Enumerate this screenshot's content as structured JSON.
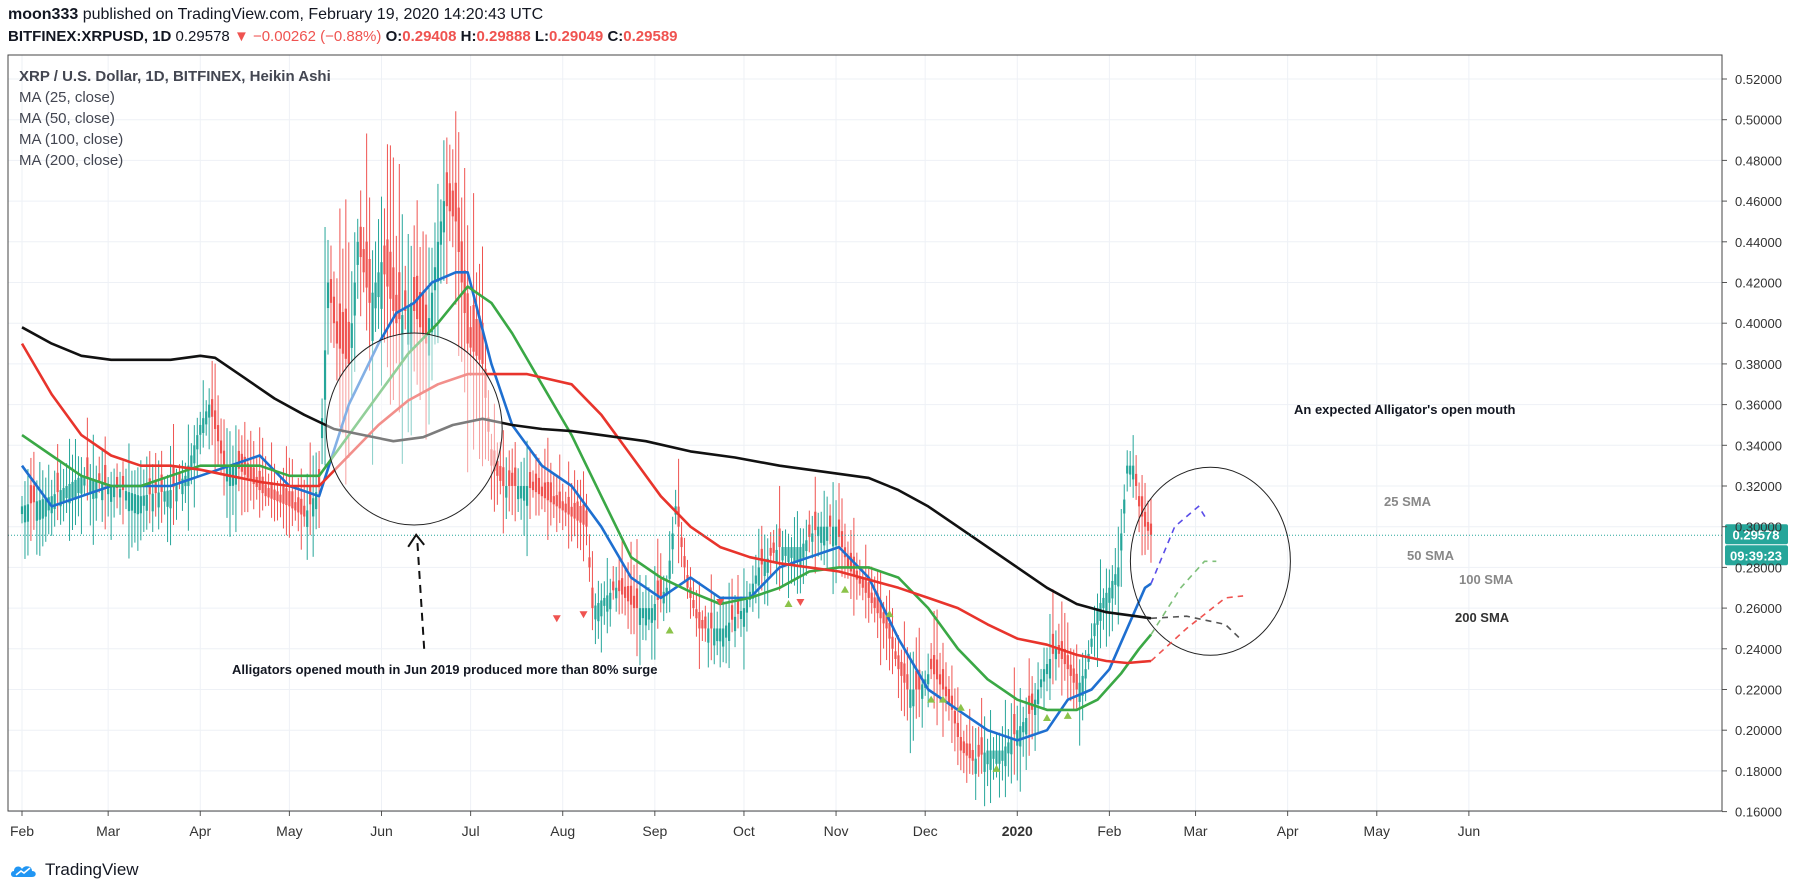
{
  "header": {
    "author": "moon333",
    "published_text": "published on TradingView.com, February 19, 2020 14:20:43 UTC",
    "symbol": "BITFINEX:XRPUSD, 1D",
    "last": "0.29578",
    "change": "▼ −0.00262 (−0.88%)",
    "o_label": "O:",
    "o_value": "0.29408",
    "h_label": "H:",
    "h_value": "0.29888",
    "l_label": "L:",
    "l_value": "0.29049",
    "c_label": "C:",
    "c_value": "0.29589"
  },
  "legend": {
    "title": "XRP / U.S. Dollar, 1D, BITFINEX, Heikin Ashi",
    "ma1": "MA (25, close)",
    "ma2": "MA (50, close)",
    "ma3": "MA (100, close)",
    "ma4": "MA (200, close)"
  },
  "branding": {
    "logo_text": "TradingView"
  },
  "colors": {
    "up": "#26a69a",
    "down": "#ef5350",
    "ma25": "#1e6fd0",
    "ma50": "#3aa845",
    "ma100": "#e8342c",
    "ma200": "#111111",
    "price_badge": "#26a69a",
    "grid": "#eef1f6"
  },
  "chart_data": {
    "type": "candlestick",
    "title": "XRP / U.S. Dollar, 1D, BITFINEX, Heikin Ashi",
    "ylim": [
      0.16,
      0.52
    ],
    "y_ticks": [
      "0.52000",
      "0.50000",
      "0.48000",
      "0.46000",
      "0.44000",
      "0.42000",
      "0.40000",
      "0.38000",
      "0.36000",
      "0.34000",
      "0.32000",
      "0.30000",
      "0.28000",
      "0.26000",
      "0.24000",
      "0.22000",
      "0.20000",
      "0.18000",
      "0.16000"
    ],
    "x_ticks": [
      "Feb",
      "Mar",
      "Apr",
      "May",
      "Jun",
      "Jul",
      "Aug",
      "Sep",
      "Oct",
      "Nov",
      "Dec",
      "2020",
      "Feb",
      "Mar",
      "Apr",
      "May",
      "Jun"
    ],
    "x_tick_days": [
      0,
      29,
      60,
      90,
      121,
      151,
      182,
      213,
      243,
      274,
      304,
      335,
      366,
      395,
      426,
      456,
      487
    ],
    "last_day": 380,
    "price_path": [
      [
        0,
        0.31
      ],
      [
        10,
        0.315
      ],
      [
        20,
        0.325
      ],
      [
        30,
        0.32
      ],
      [
        40,
        0.315
      ],
      [
        50,
        0.318
      ],
      [
        55,
        0.325
      ],
      [
        60,
        0.35
      ],
      [
        63,
        0.36
      ],
      [
        68,
        0.33
      ],
      [
        72,
        0.33
      ],
      [
        82,
        0.315
      ],
      [
        90,
        0.31
      ],
      [
        95,
        0.305
      ],
      [
        100,
        0.32
      ],
      [
        103,
        0.42
      ],
      [
        106,
        0.39
      ],
      [
        110,
        0.38
      ],
      [
        113,
        0.44
      ],
      [
        117,
        0.41
      ],
      [
        121,
        0.43
      ],
      [
        126,
        0.4
      ],
      [
        131,
        0.41
      ],
      [
        136,
        0.39
      ],
      [
        140,
        0.44
      ],
      [
        142,
        0.46
      ],
      [
        146,
        0.45
      ],
      [
        150,
        0.39
      ],
      [
        155,
        0.38
      ],
      [
        158,
        0.33
      ],
      [
        162,
        0.32
      ],
      [
        170,
        0.32
      ],
      [
        180,
        0.31
      ],
      [
        190,
        0.3
      ],
      [
        192,
        0.26
      ],
      [
        200,
        0.27
      ],
      [
        206,
        0.26
      ],
      [
        212,
        0.26
      ],
      [
        217,
        0.27
      ],
      [
        220,
        0.31
      ],
      [
        224,
        0.27
      ],
      [
        228,
        0.25
      ],
      [
        236,
        0.25
      ],
      [
        243,
        0.26
      ],
      [
        248,
        0.28
      ],
      [
        255,
        0.29
      ],
      [
        262,
        0.29
      ],
      [
        268,
        0.3
      ],
      [
        274,
        0.3
      ],
      [
        278,
        0.28
      ],
      [
        283,
        0.27
      ],
      [
        287,
        0.26
      ],
      [
        291,
        0.25
      ],
      [
        295,
        0.23
      ],
      [
        298,
        0.22
      ],
      [
        302,
        0.22
      ],
      [
        306,
        0.23
      ],
      [
        310,
        0.22
      ],
      [
        313,
        0.21
      ],
      [
        316,
        0.19
      ],
      [
        320,
        0.185
      ],
      [
        325,
        0.19
      ],
      [
        330,
        0.19
      ],
      [
        335,
        0.2
      ],
      [
        340,
        0.21
      ],
      [
        344,
        0.23
      ],
      [
        348,
        0.24
      ],
      [
        352,
        0.23
      ],
      [
        355,
        0.22
      ],
      [
        358,
        0.23
      ],
      [
        362,
        0.26
      ],
      [
        366,
        0.27
      ],
      [
        369,
        0.28
      ],
      [
        372,
        0.33
      ],
      [
        374,
        0.33
      ],
      [
        376,
        0.31
      ],
      [
        378,
        0.3
      ],
      [
        380,
        0.296
      ]
    ],
    "ma_series": [
      {
        "name": "MA 25",
        "color": "#1e6fd0",
        "points": [
          [
            0,
            0.33
          ],
          [
            10,
            0.31
          ],
          [
            20,
            0.315
          ],
          [
            30,
            0.32
          ],
          [
            40,
            0.32
          ],
          [
            50,
            0.32
          ],
          [
            60,
            0.325
          ],
          [
            70,
            0.33
          ],
          [
            80,
            0.335
          ],
          [
            90,
            0.32
          ],
          [
            100,
            0.315
          ],
          [
            110,
            0.36
          ],
          [
            120,
            0.39
          ],
          [
            126,
            0.405
          ],
          [
            132,
            0.41
          ],
          [
            138,
            0.42
          ],
          [
            146,
            0.425
          ],
          [
            150,
            0.425
          ],
          [
            158,
            0.38
          ],
          [
            165,
            0.35
          ],
          [
            175,
            0.33
          ],
          [
            185,
            0.32
          ],
          [
            195,
            0.3
          ],
          [
            205,
            0.275
          ],
          [
            215,
            0.265
          ],
          [
            225,
            0.275
          ],
          [
            235,
            0.265
          ],
          [
            245,
            0.265
          ],
          [
            255,
            0.28
          ],
          [
            265,
            0.285
          ],
          [
            275,
            0.29
          ],
          [
            285,
            0.275
          ],
          [
            295,
            0.245
          ],
          [
            305,
            0.22
          ],
          [
            315,
            0.21
          ],
          [
            325,
            0.2
          ],
          [
            335,
            0.195
          ],
          [
            345,
            0.2
          ],
          [
            352,
            0.215
          ],
          [
            360,
            0.22
          ],
          [
            366,
            0.23
          ],
          [
            372,
            0.25
          ],
          [
            378,
            0.27
          ],
          [
            380,
            0.272
          ]
        ]
      },
      {
        "name": "MA 50",
        "color": "#3aa845",
        "points": [
          [
            0,
            0.345
          ],
          [
            10,
            0.335
          ],
          [
            20,
            0.325
          ],
          [
            30,
            0.32
          ],
          [
            40,
            0.32
          ],
          [
            50,
            0.325
          ],
          [
            60,
            0.33
          ],
          [
            70,
            0.33
          ],
          [
            80,
            0.33
          ],
          [
            90,
            0.325
          ],
          [
            100,
            0.325
          ],
          [
            110,
            0.345
          ],
          [
            120,
            0.365
          ],
          [
            130,
            0.385
          ],
          [
            140,
            0.4
          ],
          [
            150,
            0.418
          ],
          [
            158,
            0.41
          ],
          [
            165,
            0.395
          ],
          [
            175,
            0.37
          ],
          [
            185,
            0.345
          ],
          [
            195,
            0.315
          ],
          [
            205,
            0.285
          ],
          [
            215,
            0.275
          ],
          [
            225,
            0.268
          ],
          [
            235,
            0.262
          ],
          [
            245,
            0.265
          ],
          [
            255,
            0.27
          ],
          [
            265,
            0.278
          ],
          [
            275,
            0.28
          ],
          [
            285,
            0.28
          ],
          [
            295,
            0.275
          ],
          [
            305,
            0.26
          ],
          [
            315,
            0.24
          ],
          [
            325,
            0.225
          ],
          [
            335,
            0.215
          ],
          [
            345,
            0.21
          ],
          [
            355,
            0.21
          ],
          [
            362,
            0.215
          ],
          [
            370,
            0.228
          ],
          [
            376,
            0.24
          ],
          [
            380,
            0.247
          ]
        ]
      },
      {
        "name": "MA 100",
        "color": "#e8342c",
        "points": [
          [
            0,
            0.39
          ],
          [
            10,
            0.365
          ],
          [
            20,
            0.345
          ],
          [
            30,
            0.335
          ],
          [
            40,
            0.33
          ],
          [
            50,
            0.33
          ],
          [
            60,
            0.328
          ],
          [
            70,
            0.325
          ],
          [
            80,
            0.322
          ],
          [
            90,
            0.32
          ],
          [
            100,
            0.32
          ],
          [
            110,
            0.335
          ],
          [
            120,
            0.35
          ],
          [
            130,
            0.362
          ],
          [
            140,
            0.37
          ],
          [
            150,
            0.375
          ],
          [
            158,
            0.375
          ],
          [
            170,
            0.375
          ],
          [
            185,
            0.37
          ],
          [
            195,
            0.355
          ],
          [
            205,
            0.335
          ],
          [
            215,
            0.315
          ],
          [
            225,
            0.3
          ],
          [
            235,
            0.29
          ],
          [
            245,
            0.285
          ],
          [
            255,
            0.282
          ],
          [
            265,
            0.28
          ],
          [
            275,
            0.278
          ],
          [
            285,
            0.274
          ],
          [
            295,
            0.27
          ],
          [
            305,
            0.265
          ],
          [
            315,
            0.26
          ],
          [
            325,
            0.252
          ],
          [
            335,
            0.245
          ],
          [
            345,
            0.242
          ],
          [
            355,
            0.237
          ],
          [
            365,
            0.234
          ],
          [
            372,
            0.233
          ],
          [
            380,
            0.234
          ]
        ]
      },
      {
        "name": "MA 200",
        "color": "#111111",
        "points": [
          [
            0,
            0.398
          ],
          [
            10,
            0.39
          ],
          [
            20,
            0.384
          ],
          [
            30,
            0.382
          ],
          [
            40,
            0.382
          ],
          [
            50,
            0.382
          ],
          [
            60,
            0.384
          ],
          [
            65,
            0.383
          ],
          [
            75,
            0.373
          ],
          [
            85,
            0.363
          ],
          [
            95,
            0.355
          ],
          [
            105,
            0.348
          ],
          [
            115,
            0.345
          ],
          [
            125,
            0.342
          ],
          [
            135,
            0.344
          ],
          [
            145,
            0.35
          ],
          [
            155,
            0.353
          ],
          [
            165,
            0.35
          ],
          [
            175,
            0.348
          ],
          [
            185,
            0.347
          ],
          [
            195,
            0.345
          ],
          [
            210,
            0.342
          ],
          [
            225,
            0.337
          ],
          [
            240,
            0.334
          ],
          [
            255,
            0.33
          ],
          [
            270,
            0.327
          ],
          [
            285,
            0.324
          ],
          [
            295,
            0.318
          ],
          [
            305,
            0.31
          ],
          [
            315,
            0.3
          ],
          [
            325,
            0.29
          ],
          [
            335,
            0.28
          ],
          [
            345,
            0.27
          ],
          [
            355,
            0.262
          ],
          [
            365,
            0.258
          ],
          [
            375,
            0.256
          ],
          [
            380,
            0.255
          ]
        ]
      }
    ],
    "buy_markers": [
      [
        218,
        0.25
      ],
      [
        258,
        0.263
      ],
      [
        277,
        0.27
      ],
      [
        292,
        0.258
      ],
      [
        306,
        0.216
      ],
      [
        310,
        0.216
      ],
      [
        316,
        0.212
      ],
      [
        328,
        0.182
      ],
      [
        345,
        0.207
      ],
      [
        352,
        0.208
      ]
    ],
    "sell_markers": [
      [
        180,
        0.254
      ],
      [
        189,
        0.256
      ],
      [
        235,
        0.262
      ],
      [
        262,
        0.262
      ]
    ],
    "annotations": {
      "alligators_past": "Alligators opened mouth in Jun 2019 produced more than 80% surge",
      "alligators_future": "An expected Alligator's open mouth",
      "sma25": "25 SMA",
      "sma50": "50 SMA",
      "sma100": "100 SMA",
      "sma200": "200 SMA"
    },
    "projections": [
      {
        "color": "#5a4de8",
        "points": [
          [
            380,
            0.272
          ],
          [
            388,
            0.3
          ],
          [
            396,
            0.31
          ],
          [
            399,
            0.303
          ]
        ]
      },
      {
        "color": "#7fc07a",
        "points": [
          [
            380,
            0.247
          ],
          [
            390,
            0.27
          ],
          [
            398,
            0.283
          ],
          [
            402,
            0.283
          ]
        ]
      },
      {
        "color": "#ef5350",
        "points": [
          [
            380,
            0.234
          ],
          [
            392,
            0.25
          ],
          [
            405,
            0.265
          ],
          [
            411,
            0.266
          ]
        ]
      },
      {
        "color": "#555555",
        "points": [
          [
            380,
            0.255
          ],
          [
            392,
            0.256
          ],
          [
            405,
            0.252
          ],
          [
            410,
            0.245
          ]
        ]
      }
    ],
    "price_label": "0.29578",
    "countdown_label": "09:39:23",
    "current_price": 0.29578
  }
}
